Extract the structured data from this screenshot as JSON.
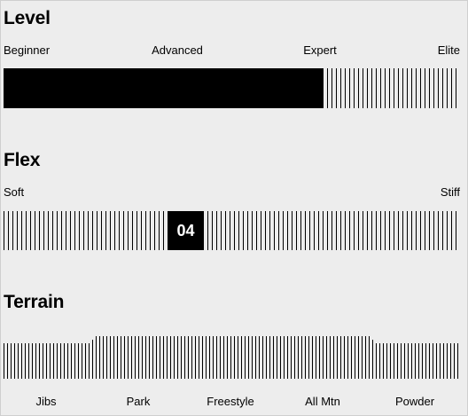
{
  "level": {
    "title": "Level",
    "labels": [
      "Beginner",
      "Advanced",
      "Expert",
      "Elite"
    ],
    "value_fraction": 0.7
  },
  "flex": {
    "title": "Flex",
    "labels": {
      "left": "Soft",
      "right": "Stiff"
    },
    "value": "04",
    "value_fraction": 0.4
  },
  "terrain": {
    "title": "Terrain",
    "labels": [
      "Jibs",
      "Park",
      "Freestyle",
      "All Mtn",
      "Powder"
    ],
    "active_range": [
      0.2,
      0.8
    ]
  }
}
